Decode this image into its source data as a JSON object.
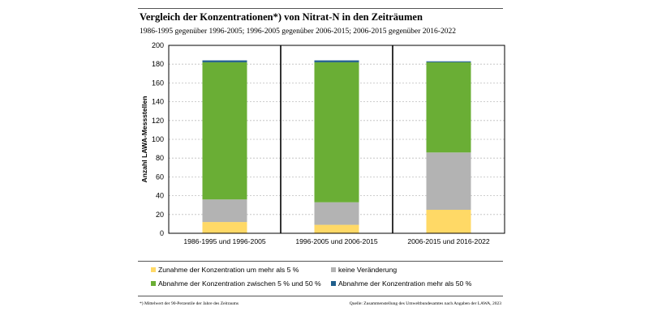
{
  "chart_data": {
    "type": "bar",
    "stacked": true,
    "title": "Vergleich der Konzentrationen*) von Nitrat-N in den Zeiträumen",
    "subtitle": "1986-1995 gegenüber 1996-2005; 1996-2005 gegenüber 2006-2015; 2006-2015 gegenüber 2016-2022",
    "xlabel": "",
    "ylabel": "Anzahl LAWA-Messstellen",
    "ylim": [
      0,
      200
    ],
    "yticks": [
      0,
      20,
      40,
      60,
      80,
      100,
      120,
      140,
      160,
      180,
      200
    ],
    "grid": true,
    "categories": [
      "1986-1995 und 1996-2005",
      "1996-2005 und 2006-2015",
      "2006-2015 und 2016-2022"
    ],
    "series": [
      {
        "name": "Zunahme der Konzentration um mehr als 5 %",
        "color": "#ffd966",
        "values": [
          12,
          9,
          25
        ]
      },
      {
        "name": "keine Veränderung",
        "color": "#b3b3b3",
        "values": [
          24,
          24,
          61
        ]
      },
      {
        "name": "Abnahme der Konzentration zwischen 5 % und 50 %",
        "color": "#6aae35",
        "values": [
          146,
          149,
          96
        ]
      },
      {
        "name": "Abnahme der Konzentration mehr als 50 %",
        "color": "#1f5e8c",
        "values": [
          2,
          2,
          1
        ]
      }
    ],
    "legend_position": "bottom"
  },
  "footnote": "*) Mittelwert der 90-Perzentile der Jahre des Zeitraums",
  "source": "Quelle: Zusammenstellung des Umweltbundesamtes nach Angaben der LAWA, 2023"
}
